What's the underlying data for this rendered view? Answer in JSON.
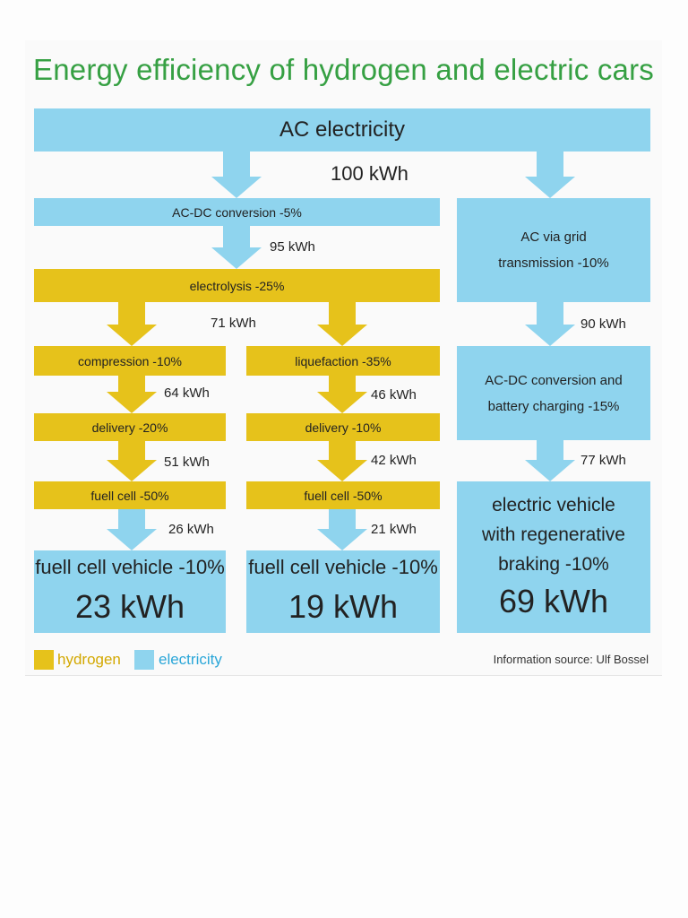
{
  "title": "Energy efficiency of hydrogen and electric cars",
  "colors": {
    "electricity": "#8fd4ee",
    "hydrogen": "#e6c21b",
    "title": "#36a043"
  },
  "ac_electricity": "AC electricity",
  "kwh": {
    "k100": "100 kWh",
    "k95": "95 kWh",
    "k71": "71 kWh",
    "k64": "64 kWh",
    "k46": "46 kWh",
    "k51": "51 kWh",
    "k42": "42 kWh",
    "k26": "26 kWh",
    "k21": "21 kWh",
    "k90": "90 kWh",
    "k77": "77 kWh"
  },
  "steps": {
    "acdc": "AC-DC conversion -5%",
    "electrolysis": "electrolysis -25%",
    "compression": "compression -10%",
    "liquefaction": "liquefaction -35%",
    "delivery_left": "delivery -20%",
    "delivery_right": "delivery -10%",
    "fuelcell_left": "fuell cell -50%",
    "fuelcell_right": "fuell cell -50%",
    "grid_line1": "AC via grid",
    "grid_line2": "transmission -10%",
    "charge_line1": "AC-DC conversion and",
    "charge_line2": "battery charging -15%"
  },
  "results": {
    "fcv_left_label": "fuell cell vehicle -10%",
    "fcv_left_value": "23 kWh",
    "fcv_right_label": "fuell cell vehicle -10%",
    "fcv_right_value": "19 kWh",
    "ev_line1": "electric vehicle",
    "ev_line2": "with regenerative",
    "ev_line3": "braking -10%",
    "ev_value": "69 kWh"
  },
  "legend": {
    "hydrogen": "hydrogen",
    "electricity": "electricity"
  },
  "source": "Information source: Ulf Bossel"
}
